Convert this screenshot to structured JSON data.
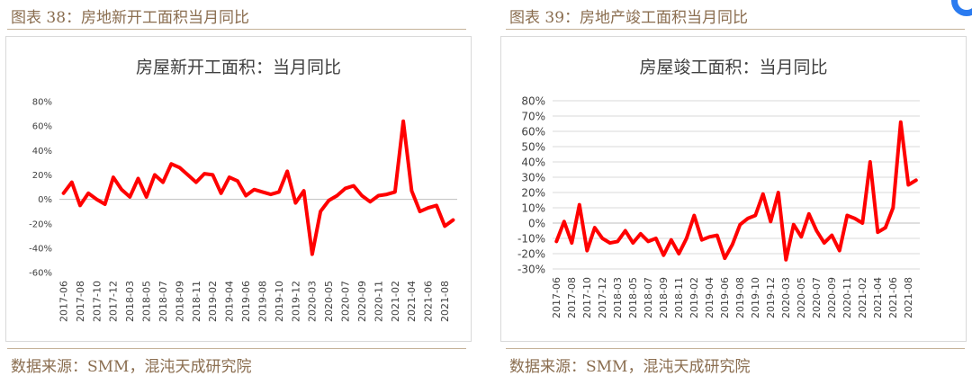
{
  "left_panel": {
    "caption": "图表 38：房地新开工面积当月同比",
    "source": "数据来源：SMM，混沌天成研究院"
  },
  "right_panel": {
    "caption": "图表 39：房地产竣工面积当月同比",
    "source": "数据来源：SMM，混沌天成研究院"
  },
  "colors": {
    "line": "#ff0000",
    "caption": "#8a6d4f",
    "grid": "#d9d9d9",
    "accent_dot": "#2a7bf0"
  },
  "chart_data": [
    {
      "type": "line",
      "title": "房屋新开工面积：当月同比",
      "ylim": [
        -60,
        80
      ],
      "yticks": [
        "80%",
        "60%",
        "40%",
        "20%",
        "0%",
        "-20%",
        "-40%",
        "-60%"
      ],
      "ytick_values": [
        80,
        60,
        40,
        20,
        0,
        -20,
        -40,
        -60
      ],
      "grid": false,
      "x_tick_labels": [
        "2017-06",
        "2017-08",
        "2017-10",
        "2017-12",
        "2018-03",
        "2018-05",
        "2018-07",
        "2018-09",
        "2018-11",
        "2019-02",
        "2019-04",
        "2019-06",
        "2019-08",
        "2019-10",
        "2019-12",
        "2020-03",
        "2020-05",
        "2020-07",
        "2020-09",
        "2020-11",
        "2021-02",
        "2021-04",
        "2021-06",
        "2021-08"
      ],
      "series": [
        {
          "values": [
            5,
            14,
            -5,
            5,
            0,
            -4,
            18,
            8,
            2,
            17,
            2,
            20,
            14,
            29,
            26,
            20,
            14,
            21,
            20,
            5,
            18,
            15,
            3,
            8,
            6,
            4,
            6,
            23,
            -3,
            7,
            -45,
            -10,
            -1,
            3,
            9,
            11,
            3,
            -2,
            3,
            4,
            6,
            64,
            7,
            -10,
            -7,
            -5,
            -22,
            -17
          ]
        }
      ]
    },
    {
      "type": "line",
      "title": "房屋竣工面积：当月同比",
      "ylim": [
        -30,
        80
      ],
      "yticks": [
        "80%",
        "70%",
        "60%",
        "50%",
        "40%",
        "30%",
        "20%",
        "10%",
        "0%",
        "-10%",
        "-20%",
        "-30%"
      ],
      "ytick_values": [
        80,
        70,
        60,
        50,
        40,
        30,
        20,
        10,
        0,
        -10,
        -20,
        -30
      ],
      "grid": true,
      "x_tick_labels": [
        "2017-06",
        "2017-08",
        "2017-10",
        "2017-12",
        "2018-03",
        "2018-05",
        "2018-07",
        "2018-09",
        "2018-11",
        "2019-02",
        "2019-04",
        "2019-06",
        "2019-08",
        "2019-10",
        "2019-12",
        "2020-03",
        "2020-05",
        "2020-07",
        "2020-09",
        "2020-11",
        "2021-02",
        "2021-04",
        "2021-06",
        "2021-08"
      ],
      "series": [
        {
          "values": [
            -12,
            1,
            -13,
            12,
            -18,
            -3,
            -10,
            -13,
            -12,
            -5,
            -13,
            -7,
            -12,
            -10,
            -21,
            -11,
            -20,
            -10,
            5,
            -11,
            -9,
            -8,
            -23,
            -14,
            -1,
            3,
            5,
            19,
            1,
            20,
            -24,
            -1,
            -9,
            6,
            -5,
            -13,
            -8,
            -18,
            5,
            3,
            0,
            40,
            -6,
            -3,
            10,
            66,
            25,
            28
          ]
        }
      ]
    }
  ]
}
